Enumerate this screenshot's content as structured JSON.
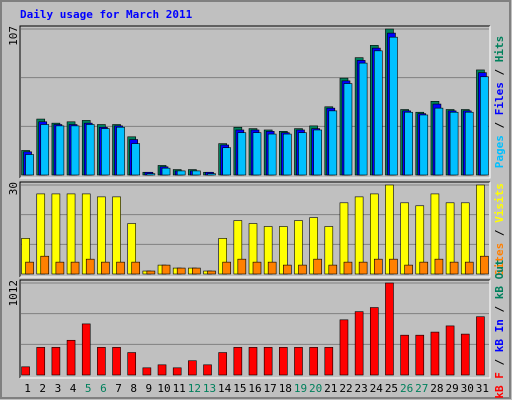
{
  "chart_data": {
    "type": "webalizer-daily",
    "title": "Daily usage for March 2011",
    "title_color": "#0000ff",
    "categories": [
      "1",
      "2",
      "3",
      "4",
      "5",
      "6",
      "7",
      "8",
      "9",
      "10",
      "11",
      "12",
      "13",
      "14",
      "15",
      "16",
      "17",
      "18",
      "19",
      "20",
      "21",
      "22",
      "23",
      "24",
      "25",
      "26",
      "27",
      "28",
      "29",
      "30",
      "31"
    ],
    "category_colors": [
      "#000000",
      "#000000",
      "#000000",
      "#000000",
      "#00805c",
      "#00805c",
      "#000000",
      "#000000",
      "#000000",
      "#000000",
      "#000000",
      "#00805c",
      "#00805c",
      "#000000",
      "#000000",
      "#000000",
      "#000000",
      "#000000",
      "#00805c",
      "#00805c",
      "#000000",
      "#000000",
      "#000000",
      "#000000",
      "#000000",
      "#00805c",
      "#00805c",
      "#000000",
      "#000000",
      "#000000",
      "#000000"
    ],
    "separator": " / ",
    "grid": true,
    "panels": [
      {
        "ylim": [
          0,
          107
        ],
        "yticks": [
          107
        ],
        "legend": [
          {
            "text": "Pages",
            "color": "#00c0ff"
          },
          {
            "text": "Files",
            "color": "#0000ff"
          },
          {
            "text": "Hits",
            "color": "#00805c"
          }
        ],
        "series": [
          {
            "color": "#00805c",
            "values": [
              18,
              41,
              38,
              39,
              40,
              37,
              37,
              28,
              2,
              7,
              4,
              4,
              2,
              23,
              35,
              34,
              33,
              32,
              34,
              36,
              50,
              71,
              86,
              95,
              107,
              48,
              46,
              54,
              48,
              48,
              77
            ]
          },
          {
            "color": "#0000ff",
            "values": [
              17,
              39,
              37,
              37,
              38,
              35,
              36,
              26,
              2,
              6,
              3,
              3,
              2,
              22,
              33,
              33,
              32,
              31,
              33,
              34,
              49,
              69,
              84,
              93,
              104,
              47,
              45,
              52,
              47,
              47,
              75
            ]
          },
          {
            "color": "#00c0ff",
            "values": [
              15,
              37,
              36,
              36,
              37,
              34,
              35,
              23,
              1,
              5,
              3,
              3,
              1,
              20,
              31,
              31,
              30,
              30,
              31,
              33,
              47,
              67,
              82,
              91,
              101,
              46,
              44,
              49,
              46,
              46,
              72
            ]
          }
        ]
      },
      {
        "ylim": [
          0,
          30
        ],
        "yticks": [
          30
        ],
        "legend": [
          {
            "text": "Sites",
            "color": "#ff8000"
          },
          {
            "text": "Visits",
            "color": "#ffff00"
          }
        ],
        "series": [
          {
            "color": "#ffff00",
            "values": [
              12,
              27,
              27,
              27,
              27,
              26,
              26,
              17,
              1,
              3,
              2,
              2,
              1,
              12,
              18,
              17,
              16,
              16,
              18,
              19,
              16,
              24,
              26,
              27,
              30,
              24,
              23,
              27,
              24,
              24,
              30
            ]
          },
          {
            "color": "#ff8000",
            "values": [
              4,
              6,
              4,
              4,
              5,
              4,
              4,
              4,
              1,
              3,
              2,
              2,
              1,
              4,
              5,
              4,
              4,
              3,
              3,
              5,
              3,
              4,
              4,
              5,
              5,
              3,
              4,
              5,
              4,
              4,
              6
            ]
          }
        ]
      },
      {
        "ylim": [
          0,
          1012
        ],
        "yticks": [
          1012
        ],
        "legend": [
          {
            "text": "kB F",
            "color": "#ff0000"
          },
          {
            "text": "kB In",
            "color": "#0000ff"
          },
          {
            "text": "kB Out",
            "color": "#00805c"
          }
        ],
        "series": [
          {
            "color": "#ff0000",
            "values": [
              90,
              304,
              304,
              382,
              562,
              304,
              304,
              247,
              79,
              112,
              79,
              157,
              112,
              247,
              304,
              304,
              304,
              304,
              304,
              304,
              304,
              607,
              697,
              742,
              1012,
              438,
              438,
              472,
              540,
              450,
              641
            ]
          }
        ]
      }
    ]
  }
}
